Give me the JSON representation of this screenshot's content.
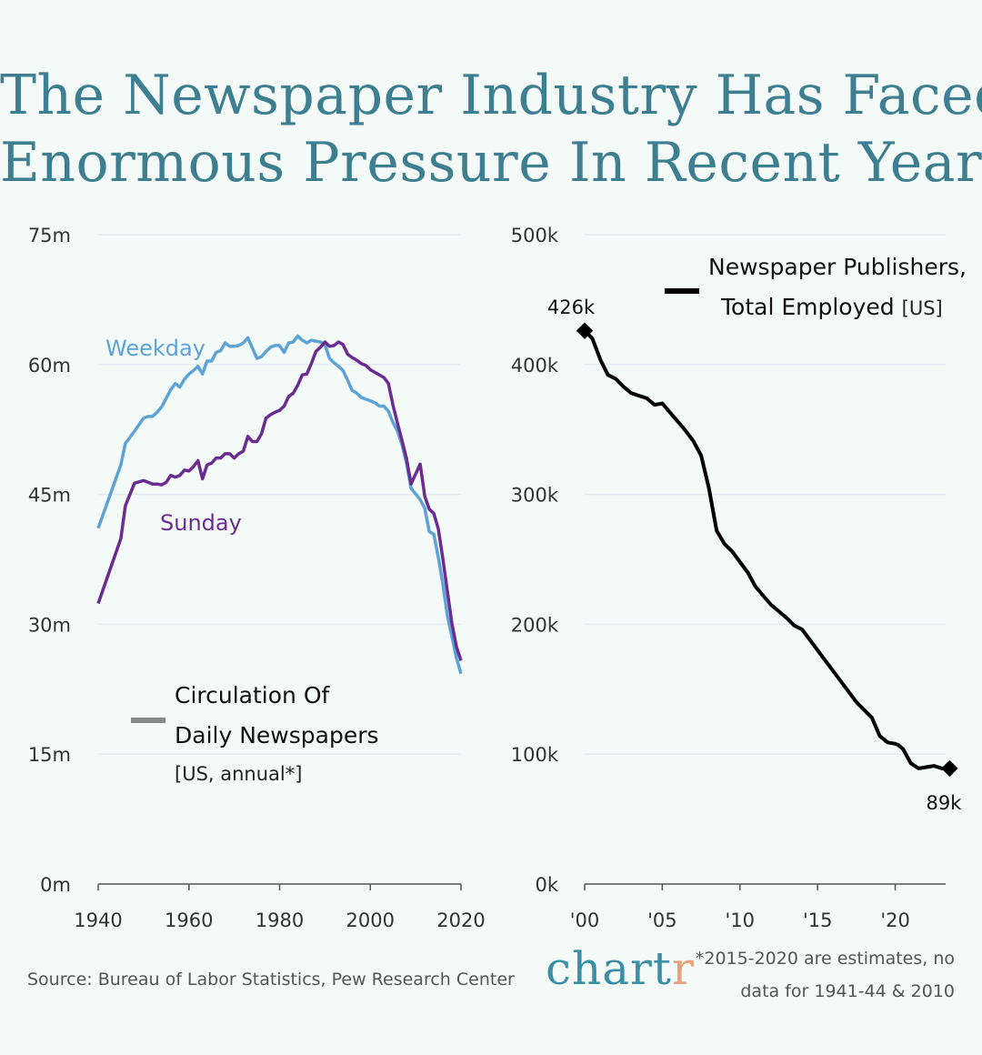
{
  "title": {
    "line1": "The Newspaper Industry Has Faced",
    "line2": "Enormous Pressure In Recent Years"
  },
  "source": "Source: Bureau of Labor Statistics, Pew Research Center",
  "brand": {
    "main": "chart",
    "accent": "r",
    "color": "#3a8fa6",
    "accent_color": "#e8a07a"
  },
  "note": {
    "line1": "*2015-2020 are estimates, no",
    "line2": "data for 1941-44 & 2010"
  },
  "colors": {
    "weekday": "#5ea3d6",
    "sunday": "#6b2c91",
    "employed": "#000000",
    "title": "#3d7f91"
  },
  "chart_data": [
    {
      "type": "line",
      "legend": {
        "title_line1": "Circulation Of",
        "title_line2": "Daily Newspapers",
        "subtitle": "[US, annual*]"
      },
      "ylim": [
        0,
        75
      ],
      "yticks": [
        0,
        15,
        30,
        45,
        60,
        75
      ],
      "ytick_labels": [
        "0m",
        "15m",
        "30m",
        "45m",
        "60m",
        "75m"
      ],
      "xlim": [
        1940,
        2020
      ],
      "xticks": [
        1940,
        1960,
        1980,
        2000,
        2020
      ],
      "xtick_labels": [
        "1940",
        "1960",
        "1980",
        "2000",
        "2020"
      ],
      "series": [
        {
          "name": "Weekday",
          "x": [
            1940,
            1945,
            1946,
            1948,
            1950,
            1951,
            1952,
            1953,
            1954,
            1955,
            1956,
            1957,
            1958,
            1959,
            1960,
            1961,
            1962,
            1963,
            1964,
            1965,
            1966,
            1967,
            1968,
            1969,
            1970,
            1971,
            1972,
            1973,
            1974,
            1975,
            1976,
            1977,
            1978,
            1979,
            1980,
            1981,
            1982,
            1983,
            1984,
            1985,
            1986,
            1987,
            1988,
            1989,
            1990,
            1991,
            1992,
            1993,
            1994,
            1995,
            1996,
            1997,
            1998,
            1999,
            2000,
            2001,
            2002,
            2003,
            2004,
            2005,
            2006,
            2007,
            2008,
            2009,
            2011,
            2012,
            2013,
            2014,
            2015,
            2016,
            2017,
            2018,
            2019,
            2020
          ],
          "values": [
            41.1,
            48.4,
            50.9,
            52.3,
            53.8,
            54.0,
            54.0,
            54.5,
            55.1,
            56.1,
            57.1,
            57.8,
            57.4,
            58.3,
            58.9,
            59.3,
            59.8,
            58.9,
            60.4,
            60.4,
            61.4,
            61.6,
            62.5,
            62.1,
            62.1,
            62.2,
            62.5,
            63.1,
            61.9,
            60.7,
            60.9,
            61.5,
            62.0,
            62.2,
            62.2,
            61.4,
            62.5,
            62.6,
            63.3,
            62.8,
            62.5,
            62.8,
            62.7,
            62.6,
            62.3,
            60.7,
            60.2,
            59.8,
            59.3,
            58.2,
            57.0,
            56.7,
            56.2,
            56.0,
            55.8,
            55.6,
            55.2,
            55.2,
            54.6,
            53.3,
            52.3,
            50.7,
            48.6,
            45.7,
            44.4,
            43.4,
            40.7,
            40.4,
            37.7,
            34.7,
            31.0,
            28.6,
            26.1,
            24.3
          ]
        },
        {
          "name": "Sunday",
          "x": [
            1940,
            1945,
            1946,
            1948,
            1950,
            1951,
            1952,
            1953,
            1954,
            1955,
            1956,
            1957,
            1958,
            1959,
            1960,
            1961,
            1962,
            1963,
            1964,
            1965,
            1966,
            1967,
            1968,
            1969,
            1970,
            1971,
            1972,
            1973,
            1974,
            1975,
            1976,
            1977,
            1978,
            1979,
            1980,
            1981,
            1982,
            1983,
            1984,
            1985,
            1986,
            1987,
            1988,
            1989,
            1990,
            1991,
            1992,
            1993,
            1994,
            1995,
            1996,
            1997,
            1998,
            1999,
            2000,
            2001,
            2002,
            2003,
            2004,
            2005,
            2006,
            2007,
            2008,
            2009,
            2011,
            2012,
            2013,
            2014,
            2015,
            2016,
            2017,
            2018,
            2019,
            2020
          ],
          "values": [
            32.4,
            39.9,
            43.7,
            46.3,
            46.6,
            46.4,
            46.2,
            46.2,
            46.1,
            46.4,
            47.2,
            47.0,
            47.2,
            47.8,
            47.7,
            48.2,
            48.9,
            46.8,
            48.4,
            48.6,
            49.2,
            49.2,
            49.7,
            49.7,
            49.2,
            49.7,
            50.0,
            51.7,
            51.1,
            51.1,
            52.0,
            53.8,
            54.2,
            54.5,
            54.7,
            55.2,
            56.3,
            56.7,
            57.6,
            58.8,
            58.9,
            60.1,
            61.5,
            62.0,
            62.6,
            62.1,
            62.2,
            62.6,
            62.3,
            61.2,
            60.8,
            60.5,
            60.1,
            59.9,
            59.4,
            59.1,
            58.8,
            58.5,
            57.8,
            55.3,
            53.2,
            51.2,
            49.1,
            46.2,
            48.5,
            44.8,
            43.3,
            42.8,
            41.0,
            37.6,
            33.8,
            30.1,
            27.4,
            25.8
          ]
        }
      ]
    },
    {
      "type": "line",
      "legend": {
        "title_line1": "Newspaper Publishers,",
        "title_line2": "Total Employed",
        "subtitle": "[US]"
      },
      "ylim": [
        0,
        500000
      ],
      "yticks": [
        0,
        100000,
        200000,
        300000,
        400000,
        500000
      ],
      "ytick_labels": [
        "0k",
        "100k",
        "200k",
        "300k",
        "400k",
        "500k"
      ],
      "xlim": [
        2000,
        2025
      ],
      "xticks": [
        2000,
        2005,
        2010,
        2015,
        2020
      ],
      "xtick_labels": [
        "'00",
        "'05",
        "'10",
        "'15",
        "'20"
      ],
      "start_label": "426k",
      "end_label": "89k",
      "series": [
        {
          "name": "Newspaper Publishers, Total Employed",
          "x": [
            2000,
            2000.5,
            2001,
            2001.5,
            2002,
            2002.5,
            2003,
            2003.5,
            2004,
            2004.5,
            2005,
            2005.5,
            2006,
            2006.5,
            2007,
            2007.5,
            2008,
            2008.5,
            2009,
            2009.5,
            2010,
            2010.5,
            2011,
            2011.5,
            2012,
            2012.5,
            2013,
            2013.5,
            2014,
            2014.5,
            2015,
            2015.5,
            2016,
            2016.5,
            2017,
            2017.5,
            2018,
            2018.5,
            2019,
            2019.5,
            2020,
            2020.2,
            2020.5,
            2021,
            2021.5,
            2022,
            2022.5,
            2023,
            2023.2,
            2023.5
          ],
          "values": [
            426000,
            420000,
            404000,
            392000,
            389000,
            383000,
            378000,
            376000,
            374000,
            369000,
            370000,
            363000,
            356000,
            349000,
            341000,
            330000,
            305000,
            272000,
            262000,
            256000,
            248000,
            240000,
            229000,
            222000,
            215000,
            210000,
            205000,
            199000,
            196000,
            188000,
            180000,
            172000,
            164000,
            156000,
            148000,
            140000,
            134000,
            128000,
            114000,
            109000,
            108000,
            107000,
            104000,
            93000,
            89000,
            90000,
            91000,
            89000,
            89000,
            89000
          ]
        }
      ]
    }
  ]
}
